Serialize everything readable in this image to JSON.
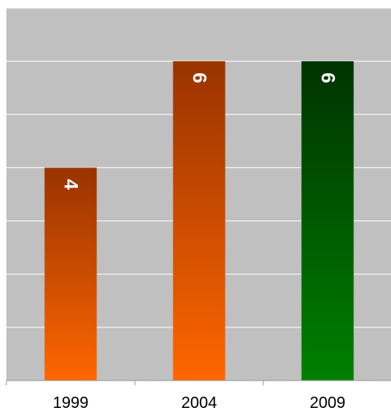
{
  "chart_data": {
    "type": "bar",
    "categories": [
      "1999",
      "2004",
      "2009"
    ],
    "values": [
      4,
      6,
      6
    ],
    "ylim": [
      0,
      7
    ],
    "grid": true,
    "data_labels": true,
    "plot_background": "#c0c0c0",
    "gridline_color": "#ffffff",
    "bar_colors": [
      {
        "top": "#993300",
        "bottom": "#ff6600"
      },
      {
        "top": "#993300",
        "bottom": "#ff6600"
      },
      {
        "top": "#003300",
        "bottom": "#008000"
      }
    ]
  }
}
